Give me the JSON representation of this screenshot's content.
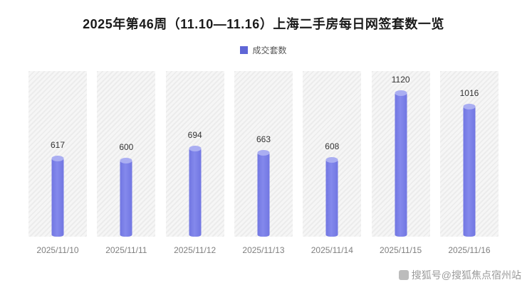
{
  "title": "2025年第46周（11.10—11.16）上海二手房每日网签套数一览",
  "legend": {
    "label": "成交套数",
    "color": "#5f66d6"
  },
  "chart_data": {
    "type": "bar",
    "title": "2025年第46周（11.10—11.16）上海二手房每日网签套数一览",
    "categories": [
      "2025/11/10",
      "2025/11/11",
      "2025/11/12",
      "2025/11/13",
      "2025/11/14",
      "2025/11/15",
      "2025/11/16"
    ],
    "values": [
      617,
      600,
      694,
      663,
      608,
      1120,
      1016
    ],
    "series_name": "成交套数",
    "bar_color": "#7b80e8",
    "xlabel": "",
    "ylabel": "",
    "ylim": [
      0,
      1200
    ],
    "grid": false,
    "legend_position": "top-center",
    "data_labels": true
  },
  "watermark": {
    "text": "搜狐号@搜狐焦点宿州站"
  }
}
